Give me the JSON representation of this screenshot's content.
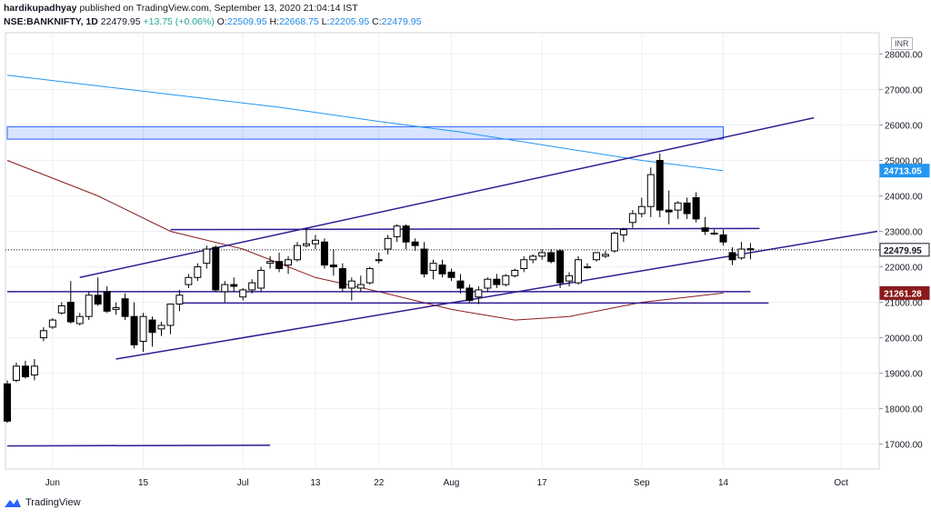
{
  "header": {
    "user": "hardikupadhyay",
    "published": "published on TradingView.com, September 13, 2020 21:04:14 IST",
    "symbol": "NSE:BANKNIFTY, 1D",
    "last": "22479.95",
    "change": "+13.75 (+0.06%)",
    "open_label": "O:",
    "open": "22509.95",
    "high_label": "H:",
    "high": "22668.75",
    "low_label": "L:",
    "low": "22205.95",
    "close_label": "C:",
    "close": "22479.95"
  },
  "currency": "INR",
  "brand": "TradingView",
  "chart_data": {
    "type": "candlestick",
    "y_ticks": [
      17000,
      18000,
      19000,
      20000,
      21000,
      22000,
      23000,
      24000,
      25000,
      26000,
      27000,
      28000
    ],
    "y_tick_labels": [
      "17000.00",
      "18000.00",
      "19000.00",
      "20000.00",
      "21000.00",
      "22000.00",
      "23000.00",
      "24000.00",
      "25000.00",
      "26000.00",
      "27000.00",
      "28000.00"
    ],
    "ylim": [
      16300,
      28600
    ],
    "x_labels": [
      {
        "label": "Jun",
        "index": 5
      },
      {
        "label": "15",
        "index": 15
      },
      {
        "label": "Jul",
        "index": 26
      },
      {
        "label": "13",
        "index": 34
      },
      {
        "label": "22",
        "index": 41
      },
      {
        "label": "Aug",
        "index": 49
      },
      {
        "label": "17",
        "index": 59
      },
      {
        "label": "Sep",
        "index": 70
      },
      {
        "label": "14",
        "index": 79
      },
      {
        "label": "Oct",
        "index": 92
      }
    ],
    "x_range": [
      0,
      96
    ],
    "candles": [
      [
        18700,
        18800,
        17600,
        17650
      ],
      [
        18800,
        19300,
        18750,
        19200
      ],
      [
        19200,
        19350,
        18850,
        18900
      ],
      [
        18950,
        19400,
        18800,
        19200
      ],
      [
        20000,
        20300,
        19900,
        20200
      ],
      [
        20300,
        20550,
        20250,
        20500
      ],
      [
        20700,
        21000,
        20650,
        20900
      ],
      [
        21000,
        21600,
        20400,
        20450
      ],
      [
        20400,
        20700,
        20350,
        20600
      ],
      [
        20600,
        21300,
        20500,
        21200
      ],
      [
        21200,
        21700,
        20900,
        20950
      ],
      [
        21300,
        21450,
        20700,
        20750
      ],
      [
        20800,
        21000,
        20650,
        20850
      ],
      [
        21100,
        21250,
        20500,
        20600
      ],
      [
        20600,
        21000,
        19700,
        19800
      ],
      [
        19900,
        20700,
        19600,
        20600
      ],
      [
        20500,
        20600,
        19750,
        20150
      ],
      [
        20250,
        20450,
        20050,
        20350
      ],
      [
        20350,
        20950,
        20100,
        20950
      ],
      [
        20950,
        21350,
        20750,
        21200
      ],
      [
        21500,
        21800,
        21400,
        21700
      ],
      [
        21700,
        22100,
        21600,
        22000
      ],
      [
        22100,
        22600,
        21950,
        22500
      ],
      [
        22550,
        22600,
        21300,
        21350
      ],
      [
        21300,
        21600,
        21000,
        21500
      ],
      [
        21500,
        21700,
        21300,
        21450
      ],
      [
        21150,
        21400,
        21050,
        21350
      ],
      [
        21350,
        21650,
        21250,
        21550
      ],
      [
        21400,
        22000,
        21300,
        21900
      ],
      [
        22100,
        22300,
        21950,
        22150
      ],
      [
        22150,
        22400,
        21850,
        21950
      ],
      [
        22050,
        22300,
        21800,
        22200
      ],
      [
        22200,
        22700,
        22150,
        22600
      ],
      [
        22600,
        23100,
        22550,
        22650
      ],
      [
        22650,
        22900,
        22500,
        22750
      ],
      [
        22700,
        22800,
        21950,
        22050
      ],
      [
        22050,
        22500,
        21750,
        22000
      ],
      [
        21950,
        22100,
        21300,
        21400
      ],
      [
        21400,
        21700,
        21050,
        21600
      ],
      [
        21400,
        21750,
        21300,
        21500
      ],
      [
        21550,
        22000,
        21500,
        21950
      ],
      [
        22200,
        22400,
        22100,
        22200
      ],
      [
        22500,
        22900,
        22350,
        22800
      ],
      [
        22850,
        23200,
        22700,
        23150
      ],
      [
        23150,
        23200,
        22500,
        22700
      ],
      [
        22700,
        22800,
        22450,
        22600
      ],
      [
        22500,
        22700,
        21700,
        21800
      ],
      [
        21900,
        22200,
        21650,
        22100
      ],
      [
        22050,
        22200,
        21700,
        21800
      ],
      [
        21850,
        21950,
        21600,
        21700
      ],
      [
        21600,
        21800,
        21250,
        21400
      ],
      [
        21400,
        21500,
        21000,
        21050
      ],
      [
        21150,
        21450,
        20950,
        21350
      ],
      [
        21400,
        21700,
        21300,
        21650
      ],
      [
        21650,
        21800,
        21400,
        21500
      ],
      [
        21500,
        21800,
        21450,
        21750
      ],
      [
        21750,
        21950,
        21700,
        21900
      ],
      [
        21950,
        22300,
        21850,
        22200
      ],
      [
        22200,
        22350,
        22100,
        22300
      ],
      [
        22300,
        22500,
        22200,
        22400
      ],
      [
        22400,
        22500,
        22100,
        22150
      ],
      [
        22450,
        22500,
        21400,
        21550
      ],
      [
        21600,
        21850,
        21450,
        21750
      ],
      [
        21550,
        22300,
        21500,
        22200
      ],
      [
        22000,
        22100,
        21950,
        22000
      ],
      [
        22200,
        22400,
        22150,
        22400
      ],
      [
        22300,
        22450,
        22250,
        22350
      ],
      [
        22450,
        23000,
        22400,
        22950
      ],
      [
        22900,
        23100,
        22700,
        23050
      ],
      [
        23250,
        23600,
        23100,
        23500
      ],
      [
        23500,
        23950,
        23400,
        23700
      ],
      [
        23700,
        24800,
        23400,
        24600
      ],
      [
        25000,
        25200,
        23400,
        23600
      ],
      [
        23600,
        24150,
        23200,
        23550
      ],
      [
        23600,
        23850,
        23350,
        23800
      ],
      [
        23800,
        23950,
        23350,
        23500
      ],
      [
        23950,
        24100,
        23250,
        23350
      ],
      [
        23100,
        23400,
        22900,
        23000
      ],
      [
        22950,
        23050,
        22900,
        22950
      ],
      [
        22900,
        23050,
        22600,
        22700
      ],
      [
        22400,
        22550,
        22050,
        22200
      ],
      [
        22250,
        22700,
        22200,
        22500
      ],
      [
        22510,
        22670,
        22210,
        22480
      ]
    ],
    "series": [
      {
        "kind": "ma",
        "points": [
          [
            0,
            25000
          ],
          [
            10,
            24000
          ],
          [
            18,
            23000
          ],
          [
            26,
            22500
          ],
          [
            34,
            21700
          ],
          [
            41,
            21300
          ],
          [
            49,
            20800
          ],
          [
            56,
            20500
          ],
          [
            62,
            20600
          ],
          [
            70,
            21000
          ],
          [
            79,
            21261
          ]
        ]
      },
      {
        "kind": "ma",
        "points": [
          [
            0,
            27400
          ],
          [
            10,
            27100
          ],
          [
            20,
            26800
          ],
          [
            30,
            26500
          ],
          [
            41,
            26100
          ],
          [
            50,
            25800
          ],
          [
            60,
            25400
          ],
          [
            70,
            25000
          ],
          [
            79,
            24713
          ]
        ]
      }
    ],
    "trendlines": [
      {
        "from": [
          8,
          21700
        ],
        "to": [
          89,
          26200
        ]
      },
      {
        "from": [
          12,
          19400
        ],
        "to": [
          96,
          23000
        ]
      },
      {
        "from": [
          18,
          23050
        ],
        "to": [
          83,
          23080
        ]
      },
      {
        "from": [
          0,
          21300
        ],
        "to": [
          82,
          21300
        ]
      },
      {
        "from": [
          19,
          20980
        ],
        "to": [
          84,
          20980
        ]
      },
      {
        "from": [
          0,
          16950
        ],
        "to": [
          29,
          16970
        ]
      }
    ],
    "zones": [
      {
        "from": [
          0,
          25950
        ],
        "to": [
          79,
          25600
        ]
      }
    ],
    "price_labels": [
      {
        "value": 24713.05,
        "text": "24713.05",
        "color": "#2196f3"
      },
      {
        "value": 22479.95,
        "text": "22479.95",
        "color": "#ffffff"
      },
      {
        "value": 21261.28,
        "text": "21261.28",
        "color": "#8b1a1a"
      }
    ]
  }
}
